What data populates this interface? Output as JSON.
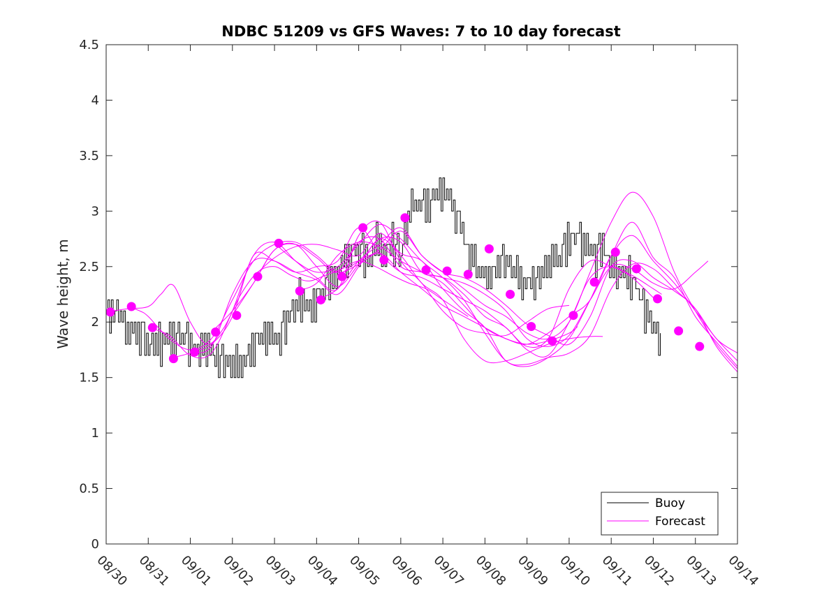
{
  "chart_data": {
    "type": "line",
    "title": "NDBC 51209 vs GFS Waves: 7 to 10 day forecast",
    "xlabel": "",
    "ylabel": "Wave height, m",
    "xlim": [
      0,
      15
    ],
    "ylim": [
      0,
      4.5
    ],
    "yticks": [
      0,
      0.5,
      1,
      1.5,
      2,
      2.5,
      3,
      3.5,
      4,
      4.5
    ],
    "ytick_labels": [
      "0",
      "0.5",
      "1",
      "1.5",
      "2",
      "2.5",
      "3",
      "3.5",
      "4",
      "4.5"
    ],
    "xticks": [
      0,
      1,
      2,
      3,
      4,
      5,
      6,
      7,
      8,
      9,
      10,
      11,
      12,
      13,
      14,
      15
    ],
    "xtick_labels": [
      "08/30",
      "08/31",
      "09/01",
      "09/02",
      "09/03",
      "09/04",
      "09/05",
      "09/06",
      "09/07",
      "09/08",
      "09/09",
      "09/10",
      "09/11",
      "09/12",
      "09/13",
      "09/14"
    ],
    "legend": {
      "position": "bottom-right",
      "entries": [
        "Buoy",
        "Forecast"
      ]
    },
    "colors": {
      "buoy": "#000000",
      "forecast": "#ff00ff"
    },
    "buoy": {
      "name": "Buoy",
      "x": [
        0,
        0.2,
        0.4,
        0.6,
        0.8,
        1.0,
        1.2,
        1.4,
        1.6,
        1.8,
        2.0,
        2.2,
        2.4,
        2.6,
        2.8,
        3.0,
        3.2,
        3.4,
        3.6,
        3.8,
        4.0,
        4.2,
        4.4,
        4.6,
        4.8,
        5.0,
        5.2,
        5.4,
        5.6,
        5.8,
        6.0,
        6.2,
        6.4,
        6.6,
        6.8,
        7.0,
        7.2,
        7.4,
        7.6,
        7.8,
        8.0,
        8.2,
        8.4,
        8.6,
        8.8,
        9.0,
        9.2,
        9.4,
        9.6,
        9.8,
        10.0,
        10.2,
        10.4,
        10.6,
        10.8,
        11.0,
        11.2,
        11.4,
        11.6,
        11.8,
        12.0,
        12.2,
        12.4,
        12.6,
        12.8,
        13.0,
        13.2
      ],
      "y": [
        2.0,
        2.1,
        2.0,
        1.9,
        1.9,
        1.8,
        1.8,
        1.8,
        1.9,
        1.85,
        1.8,
        1.7,
        1.8,
        1.65,
        1.6,
        1.65,
        1.6,
        1.7,
        1.85,
        1.9,
        1.85,
        1.9,
        2.1,
        2.2,
        2.15,
        2.2,
        2.3,
        2.4,
        2.5,
        2.65,
        2.6,
        2.55,
        2.7,
        2.6,
        2.7,
        2.6,
        3.0,
        3.1,
        3.0,
        3.15,
        3.2,
        3.1,
        2.85,
        2.6,
        2.5,
        2.4,
        2.45,
        2.55,
        2.5,
        2.4,
        2.35,
        2.3,
        2.5,
        2.55,
        2.6,
        2.7,
        2.8,
        2.7,
        2.6,
        2.65,
        2.5,
        2.45,
        2.45,
        2.3,
        2.1,
        1.95,
        1.75
      ],
      "noise": [
        0.05,
        0.1,
        -0.08,
        0.12,
        -0.1,
        0.06,
        0.14,
        -0.12,
        0.09,
        -0.05,
        0.11,
        -0.14,
        0.07,
        -0.09,
        0.13,
        -0.06,
        0.1,
        -0.11,
        0.08,
        -0.13
      ]
    },
    "forecasts": [
      {
        "x": [
          0.0,
          0.5,
          1.0,
          1.3,
          1.6,
          2.0,
          2.4,
          2.8,
          3.2,
          3.6,
          4.0,
          4.4,
          4.8,
          5.2,
          5.6,
          6.0,
          6.4,
          6.8,
          7.2,
          7.6,
          8.0,
          8.4,
          8.6
        ],
        "y": [
          2.09,
          2.12,
          2.14,
          2.25,
          2.33,
          2.0,
          1.8,
          1.95,
          2.25,
          2.45,
          2.5,
          2.42,
          2.37,
          2.42,
          2.48,
          2.55,
          2.5,
          2.42,
          2.35,
          2.3,
          2.2,
          2.1,
          2.05
        ]
      },
      {
        "x": [
          0.5,
          0.8,
          1.0,
          1.5,
          2.0,
          2.5,
          3.0,
          3.5,
          4.0,
          4.5,
          5.0,
          5.5,
          6.0,
          6.5,
          7.0,
          7.5,
          8.0,
          8.5,
          9.0,
          9.5,
          10.0,
          10.5,
          11.0,
          11.2
        ],
        "y": [
          2.14,
          2.1,
          2.05,
          1.85,
          1.75,
          1.85,
          2.2,
          2.55,
          2.7,
          2.72,
          2.6,
          2.45,
          2.52,
          2.62,
          2.45,
          2.3,
          2.15,
          2.05,
          1.95,
          1.85,
          1.8,
          1.83,
          1.9,
          1.96
        ]
      },
      {
        "x": [
          1.0,
          1.5,
          2.0,
          2.5,
          3.0,
          3.5,
          4.0,
          4.5,
          5.0,
          5.5,
          6.0,
          6.5,
          7.0,
          7.5,
          8.0,
          8.5,
          9.0,
          9.5,
          10.0,
          10.5,
          11.0
        ],
        "y": [
          1.95,
          1.88,
          1.7,
          1.72,
          2.1,
          2.6,
          2.72,
          2.55,
          2.4,
          2.3,
          2.78,
          2.9,
          2.55,
          2.35,
          2.1,
          1.95,
          1.9,
          1.88,
          2.0,
          2.12,
          2.15
        ]
      },
      {
        "x": [
          1.5,
          2.0,
          2.5,
          3.0,
          3.5,
          4.0,
          4.5,
          5.0,
          5.5,
          6.0,
          6.5,
          7.0,
          7.5,
          8.0,
          8.5,
          9.0,
          9.5,
          10.0,
          10.5,
          11.0,
          11.5,
          11.8
        ],
        "y": [
          1.67,
          1.72,
          1.78,
          2.25,
          2.55,
          2.55,
          2.45,
          2.38,
          2.25,
          2.5,
          2.75,
          2.6,
          2.35,
          2.2,
          1.85,
          1.65,
          1.65,
          1.72,
          1.8,
          1.85,
          1.87,
          1.87
        ]
      },
      {
        "x": [
          2.0,
          2.5,
          3.0,
          3.5,
          4.0,
          4.5,
          5.0,
          5.5,
          6.0,
          6.5,
          7.0,
          7.5,
          8.0,
          8.5,
          9.0,
          9.5,
          10.0,
          10.5,
          11.0,
          11.5,
          12.0,
          12.5,
          13.0,
          13.2
        ],
        "y": [
          1.73,
          1.8,
          2.05,
          2.6,
          2.55,
          2.45,
          2.5,
          2.55,
          2.85,
          2.62,
          2.45,
          2.4,
          2.3,
          2.2,
          2.1,
          1.95,
          1.78,
          1.85,
          2.3,
          2.55,
          2.5,
          2.42,
          2.3,
          2.25
        ]
      },
      {
        "x": [
          2.5,
          3.0,
          3.5,
          4.0,
          4.5,
          5.0,
          5.5,
          6.0,
          6.5,
          7.0,
          7.5,
          8.0,
          8.5,
          9.0,
          9.5,
          10.0,
          10.5,
          11.0,
          11.5,
          12.0,
          12.5,
          13.0,
          13.5,
          14.0,
          14.3
        ],
        "y": [
          1.91,
          2.1,
          2.35,
          2.65,
          2.7,
          2.58,
          2.45,
          2.72,
          2.75,
          2.5,
          2.45,
          2.4,
          2.35,
          2.25,
          2.1,
          1.85,
          1.78,
          1.88,
          2.2,
          2.5,
          2.48,
          2.35,
          2.3,
          2.45,
          2.55
        ]
      },
      {
        "x": [
          3.0,
          3.5,
          4.0,
          4.5,
          5.0,
          5.5,
          6.0,
          6.5,
          7.0,
          7.5,
          8.0,
          8.5,
          9.0,
          9.5,
          10.0,
          10.5,
          11.0,
          11.5,
          12.0,
          12.5,
          13.0
        ],
        "y": [
          2.06,
          2.35,
          2.65,
          2.7,
          2.5,
          2.32,
          2.52,
          2.75,
          2.72,
          2.45,
          2.4,
          2.25,
          2.05,
          1.95,
          1.75,
          1.7,
          2.0,
          2.4,
          2.5,
          2.4,
          2.22
        ]
      },
      {
        "x": [
          3.5,
          4.0,
          4.5,
          5.0,
          5.5,
          6.0,
          6.5,
          7.0,
          7.5,
          8.0,
          8.5,
          9.0,
          9.5,
          10.0,
          10.5,
          11.0,
          11.5,
          12.0,
          12.5,
          13.0,
          13.5,
          14.0,
          14.5,
          15.0
        ],
        "y": [
          2.41,
          2.58,
          2.68,
          2.7,
          2.65,
          2.6,
          2.8,
          2.62,
          2.55,
          2.3,
          2.1,
          1.95,
          1.65,
          1.62,
          1.68,
          1.72,
          1.88,
          2.3,
          2.52,
          2.48,
          2.3,
          2.12,
          1.85,
          1.72
        ]
      },
      {
        "x": [
          4.0,
          4.5,
          5.0,
          5.5,
          6.0,
          6.5,
          7.0,
          7.5,
          8.0,
          8.5,
          9.0,
          9.5,
          10.0,
          10.5,
          11.0,
          11.5,
          12.0,
          12.5,
          13.0,
          13.5,
          14.0,
          14.5,
          15.0
        ],
        "y": [
          2.71,
          2.55,
          2.45,
          2.5,
          2.7,
          2.88,
          2.75,
          2.55,
          2.4,
          2.2,
          1.9,
          1.65,
          1.6,
          1.68,
          1.85,
          2.2,
          2.6,
          2.78,
          2.55,
          2.35,
          2.1,
          1.85,
          1.65
        ]
      },
      {
        "x": [
          4.5,
          5.0,
          5.5,
          6.0,
          6.5,
          7.0,
          7.5,
          8.0,
          8.5,
          9.0,
          9.5,
          10.0,
          10.5,
          11.0,
          11.5,
          12.0,
          12.5,
          13.0,
          13.5,
          14.0,
          14.5,
          15.0
        ],
        "y": [
          2.28,
          2.35,
          2.6,
          2.72,
          2.68,
          2.55,
          2.45,
          2.35,
          2.15,
          1.95,
          1.85,
          1.8,
          1.9,
          2.05,
          2.2,
          2.6,
          2.9,
          2.58,
          2.4,
          2.05,
          1.82,
          1.6
        ]
      },
      {
        "x": [
          5.0,
          5.5,
          6.0,
          6.5,
          7.0,
          7.5,
          8.0,
          8.5,
          9.0,
          9.5,
          10.0,
          10.5,
          11.0,
          11.5,
          12.0,
          12.5,
          13.0,
          13.5,
          14.0,
          14.5,
          15.0
        ],
        "y": [
          2.2,
          2.3,
          2.55,
          2.7,
          2.85,
          2.6,
          2.45,
          2.3,
          2.15,
          2.05,
          1.9,
          1.85,
          2.0,
          2.45,
          2.9,
          3.17,
          2.95,
          2.45,
          2.1,
          1.8,
          1.58
        ]
      },
      {
        "x": [
          5.5,
          6.0,
          6.5,
          7.0,
          7.5,
          8.0,
          8.5,
          9.0,
          9.5,
          10.0,
          10.5,
          11.0,
          11.5,
          12.0,
          12.5,
          13.0,
          13.5,
          14.0,
          14.5,
          15.0
        ],
        "y": [
          2.41,
          2.55,
          2.65,
          2.82,
          2.6,
          2.45,
          2.4,
          2.3,
          2.15,
          1.98,
          1.88,
          1.8,
          2.05,
          2.5,
          2.55,
          2.4,
          2.28,
          2.12,
          1.78,
          1.55
        ]
      }
    ],
    "forecast_markers": [
      {
        "x": 0.1,
        "y": 2.09
      },
      {
        "x": 0.6,
        "y": 2.14
      },
      {
        "x": 1.1,
        "y": 1.95
      },
      {
        "x": 1.6,
        "y": 1.67
      },
      {
        "x": 2.1,
        "y": 1.73
      },
      {
        "x": 2.6,
        "y": 1.91
      },
      {
        "x": 3.1,
        "y": 2.06
      },
      {
        "x": 3.6,
        "y": 2.41
      },
      {
        "x": 4.1,
        "y": 2.71
      },
      {
        "x": 4.6,
        "y": 2.28
      },
      {
        "x": 5.1,
        "y": 2.2
      },
      {
        "x": 5.6,
        "y": 2.41
      },
      {
        "x": 6.1,
        "y": 2.85
      },
      {
        "x": 6.6,
        "y": 2.56
      },
      {
        "x": 7.1,
        "y": 2.94
      },
      {
        "x": 7.6,
        "y": 2.47
      },
      {
        "x": 8.1,
        "y": 2.46
      },
      {
        "x": 8.6,
        "y": 2.43
      },
      {
        "x": 9.1,
        "y": 2.66
      },
      {
        "x": 9.6,
        "y": 2.25
      },
      {
        "x": 10.1,
        "y": 1.96
      },
      {
        "x": 10.6,
        "y": 1.83
      },
      {
        "x": 11.1,
        "y": 2.06
      },
      {
        "x": 11.6,
        "y": 2.36
      },
      {
        "x": 12.1,
        "y": 2.63
      },
      {
        "x": 12.6,
        "y": 2.48
      },
      {
        "x": 13.1,
        "y": 2.21
      },
      {
        "x": 13.6,
        "y": 1.92
      },
      {
        "x": 14.1,
        "y": 1.78
      }
    ]
  }
}
